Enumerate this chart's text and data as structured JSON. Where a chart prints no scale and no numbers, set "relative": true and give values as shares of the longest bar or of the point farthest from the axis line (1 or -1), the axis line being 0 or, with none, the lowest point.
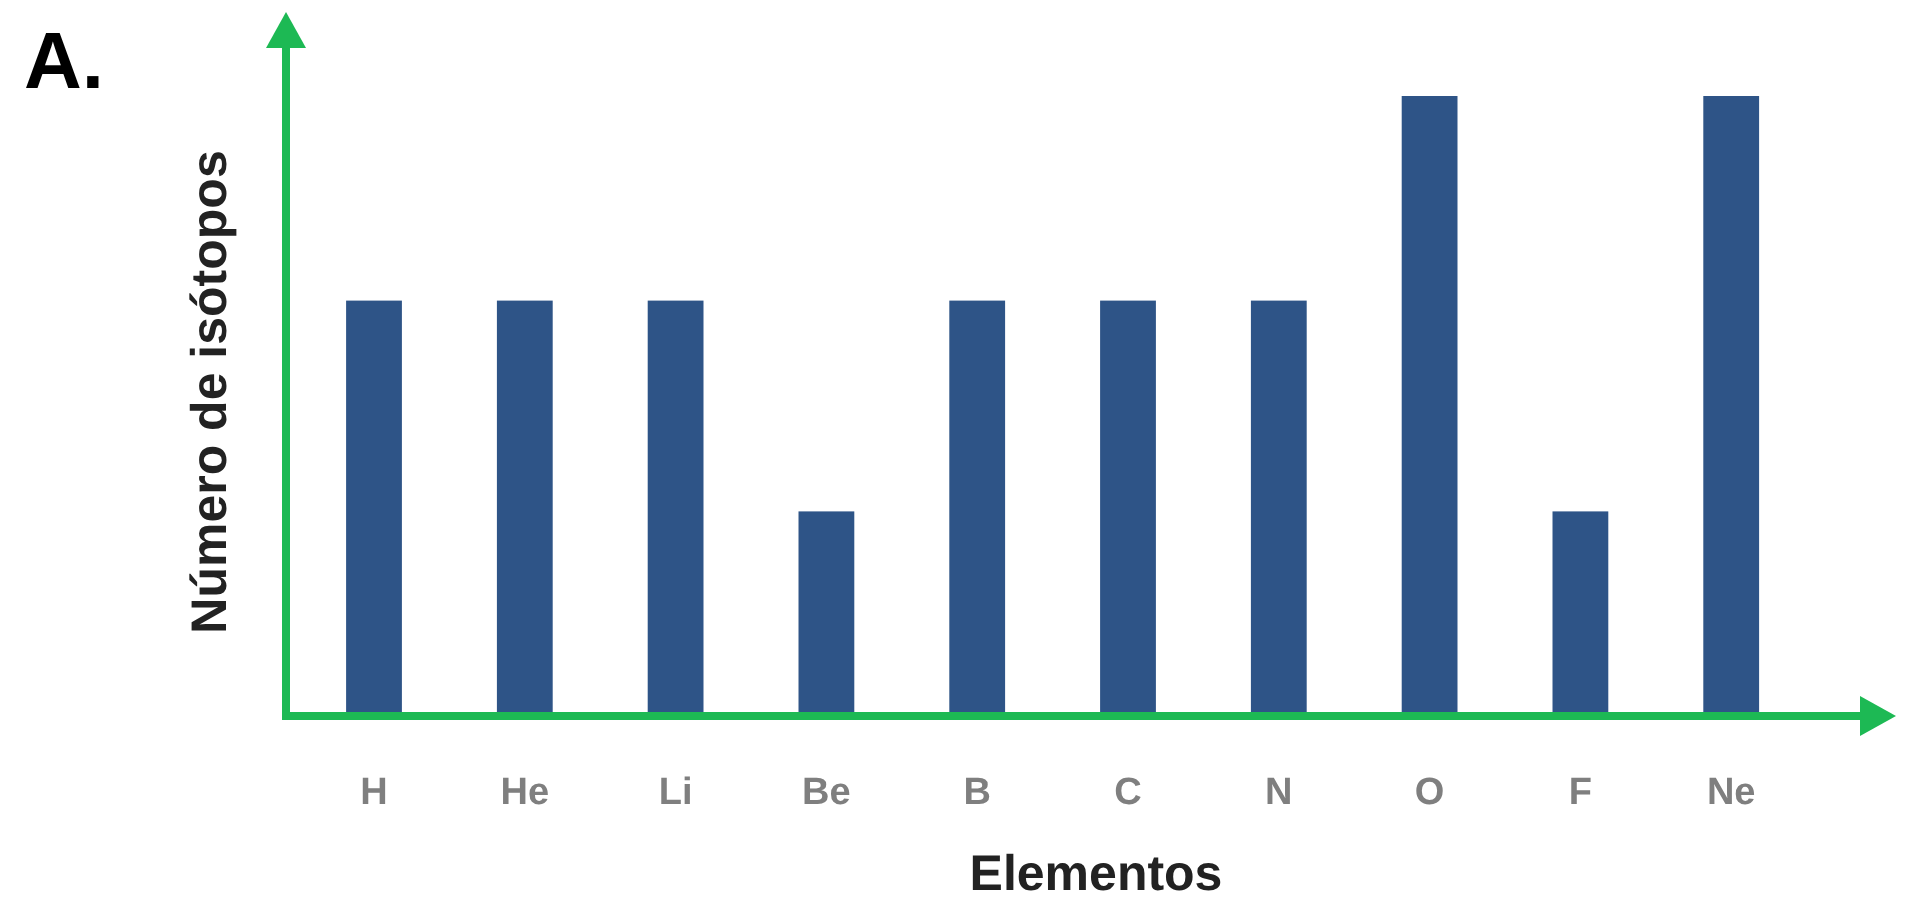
{
  "chart_data": {
    "type": "bar",
    "relative": true,
    "xlabel": "Elementos",
    "ylabel": "Número de isótopos",
    "annotations": [
      "A."
    ],
    "categories": [
      "H",
      "He",
      "Li",
      "Be",
      "B",
      "C",
      "N",
      "O",
      "F",
      "Ne"
    ],
    "values": [
      0.67,
      0.67,
      0.67,
      0.33,
      0.67,
      0.67,
      0.67,
      1,
      0.33,
      1
    ],
    "color": "#2e5487"
  }
}
